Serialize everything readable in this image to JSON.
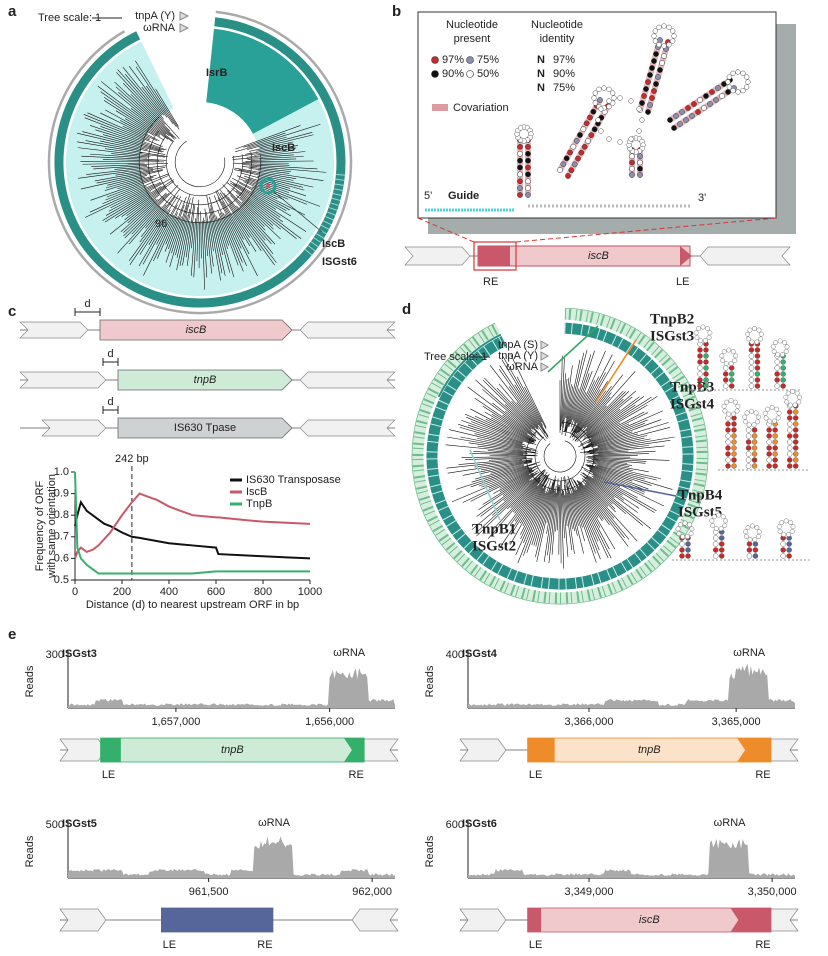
{
  "a": {
    "letter": "a",
    "tree_scale": "Tree scale: 1",
    "rings": [
      "tnpA (Y)",
      "ωRNA"
    ],
    "isrb": "IsrB",
    "iscb": "IscB",
    "bootstrap": "96",
    "callout": [
      "IscB",
      "ISGst6"
    ]
  },
  "b": {
    "letter": "b",
    "present_title": [
      "Nucleotide",
      "present"
    ],
    "present": [
      "97%",
      "90%",
      "75%",
      "50%"
    ],
    "identity_title": [
      "Nucleotide",
      "identity"
    ],
    "identity": [
      [
        "N",
        "97%"
      ],
      [
        "N",
        "90%"
      ],
      [
        "N",
        "75%"
      ]
    ],
    "covariation": "Covariation",
    "five": "5'",
    "guide": "Guide",
    "three": "3'",
    "gene": "iscB",
    "re": "RE",
    "le": "LE"
  },
  "c": {
    "letter": "c",
    "d": "d",
    "genes": [
      "iscB",
      "tnpB",
      "IS630 Tpase"
    ]
  },
  "chart_data": {
    "type": "line",
    "ylabel": [
      "Frequency of ORF",
      "with same orientation"
    ],
    "xlabel": "Distance (d) to nearest upstream ORF in bp",
    "x": [
      0,
      10,
      25,
      50,
      75,
      100,
      125,
      150,
      200,
      242,
      275,
      300,
      350,
      400,
      450,
      500,
      600,
      610,
      700,
      800,
      900,
      1000
    ],
    "series": [
      {
        "name": "IS630 Transposase",
        "color": "#111111",
        "values": [
          0.75,
          0.8,
          0.86,
          0.82,
          0.8,
          0.78,
          0.76,
          0.75,
          0.72,
          0.7,
          0.695,
          0.69,
          0.68,
          0.67,
          0.665,
          0.66,
          0.65,
          0.62,
          0.615,
          0.61,
          0.605,
          0.6
        ]
      },
      {
        "name": "IscB",
        "color": "#c9596a",
        "values": [
          0.6,
          0.63,
          0.65,
          0.63,
          0.64,
          0.66,
          0.69,
          0.72,
          0.8,
          0.86,
          0.9,
          0.89,
          0.87,
          0.84,
          0.82,
          0.8,
          0.79,
          0.79,
          0.78,
          0.77,
          0.765,
          0.76
        ]
      },
      {
        "name": "TnpB",
        "color": "#35b06a",
        "values": [
          1.0,
          0.65,
          0.6,
          0.57,
          0.55,
          0.53,
          0.53,
          0.53,
          0.53,
          0.53,
          0.53,
          0.53,
          0.53,
          0.53,
          0.53,
          0.53,
          0.54,
          0.54,
          0.54,
          0.54,
          0.54,
          0.54
        ]
      }
    ],
    "xlim": [
      0,
      1000
    ],
    "ylim": [
      0.5,
      1.0
    ],
    "xticks": [
      0,
      200,
      400,
      600,
      800,
      1000
    ],
    "yticks": [
      0.5,
      0.6,
      0.7,
      0.8,
      0.9,
      {
        "value": 1.0,
        "label": "1.0"
      }
    ],
    "annotation": {
      "x": 242,
      "label": "242 bp"
    },
    "legend": "upper right"
  },
  "d": {
    "letter": "d",
    "tree_scale": "Tree scale: 1",
    "rings": [
      "tnpA (S)",
      "tnpA (Y)",
      "ωRNA"
    ],
    "callouts": [
      {
        "lines": [
          "TnpB2",
          "ISGst3"
        ],
        "color": "#33a866"
      },
      {
        "lines": [
          "TnpB3",
          "ISGst4"
        ],
        "color": "#ee8c2a"
      },
      {
        "lines": [
          "TnpB4",
          "ISGst5"
        ],
        "color": "#56669a"
      },
      {
        "lines": [
          "TnpB1",
          "ISGst2"
        ],
        "color": "#8fd3d6"
      }
    ]
  },
  "e": {
    "letter": "e",
    "tracks": [
      {
        "name": "ISGst3",
        "color": "#35b06a",
        "light": "#cdebd6",
        "ymax": 300,
        "ylabel": "Reads",
        "peak": "ωRNA",
        "ticks": [
          "1,657,000",
          "1,656,000"
        ],
        "gene": "tnpB",
        "le": "LE",
        "re": "RE"
      },
      {
        "name": "ISGst4",
        "color": "#ee8c2a",
        "light": "#fbe2c8",
        "ymax": 400,
        "ylabel": "Reads",
        "peak": "ωRNA",
        "ticks": [
          "3,366,000",
          "3,365,000"
        ],
        "gene": "tnpB",
        "le": "LE",
        "re": "RE"
      },
      {
        "name": "ISGst5",
        "color": "#56669a",
        "light": "#56669a",
        "ymax": 500,
        "ylabel": "Reads",
        "peak": "ωRNA",
        "ticks": [
          "961,500",
          "962,000"
        ],
        "le": "LE",
        "re": "RE"
      },
      {
        "name": "ISGst6",
        "color": "#c9596a",
        "light": "#efc9cc",
        "ymax": 600,
        "ylabel": "Reads",
        "peak": "ωRNA",
        "ticks": [
          "3,349,000",
          "3,350,000"
        ],
        "gene": "iscB",
        "le": "LE",
        "re": "RE"
      }
    ]
  }
}
